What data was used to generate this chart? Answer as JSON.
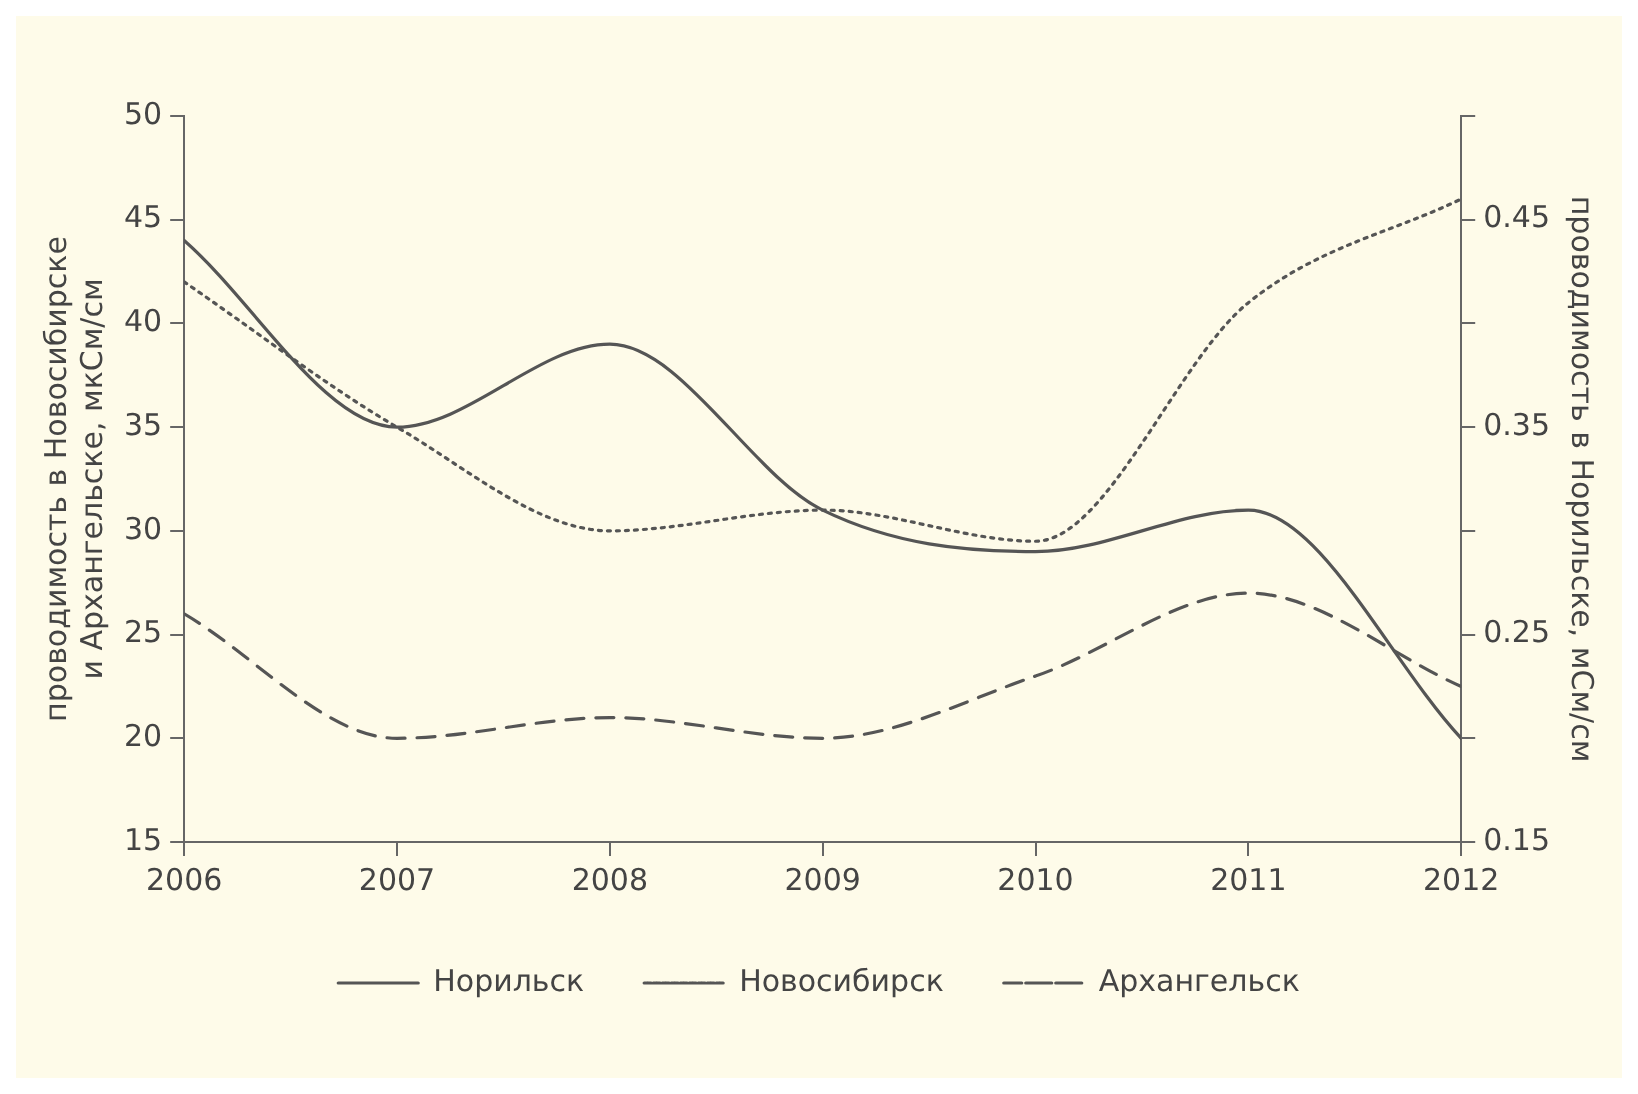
{
  "chart_data": {
    "type": "line",
    "ylabel": "проводимость в Новосибирске\nи Архангельске, мкСм/см",
    "y2label": "проводимость в Норильске, мСм/см",
    "x": [
      2006,
      2007,
      2008,
      2009,
      2010,
      2011,
      2012
    ],
    "xlim": [
      2006,
      2012
    ],
    "xticks": [
      2006,
      2007,
      2008,
      2009,
      2010,
      2011,
      2012
    ],
    "ylim": [
      15,
      50
    ],
    "yticks": [
      15,
      20,
      25,
      30,
      35,
      40,
      45,
      50
    ],
    "y2lim": [
      0.15,
      0.5
    ],
    "y2ticks": [
      0.15,
      {
        "value": 0.2,
        "label": null
      },
      0.25,
      {
        "value": 0.3,
        "label": null
      },
      0.35,
      {
        "value": 0.4,
        "label": null
      },
      0.45,
      {
        "value": 0.5,
        "label": null
      }
    ],
    "series": [
      {
        "name": "Норильск",
        "color": "#555555",
        "axis": "y2",
        "line_style": "solid",
        "values": [
          0.44,
          0.35,
          0.39,
          0.31,
          0.29,
          0.31,
          0.2
        ]
      },
      {
        "name": "Новосибирск",
        "color": "#555555",
        "line_style": "dotted",
        "values": [
          42,
          35,
          30,
          31,
          29.5,
          41,
          46
        ]
      },
      {
        "name": "Архангельск",
        "color": "#555555",
        "line_style": "dashed",
        "values": [
          26,
          20,
          21,
          20,
          23,
          27,
          22.5
        ]
      }
    ],
    "grid": false,
    "legend": "bottom",
    "marker": "none"
  }
}
